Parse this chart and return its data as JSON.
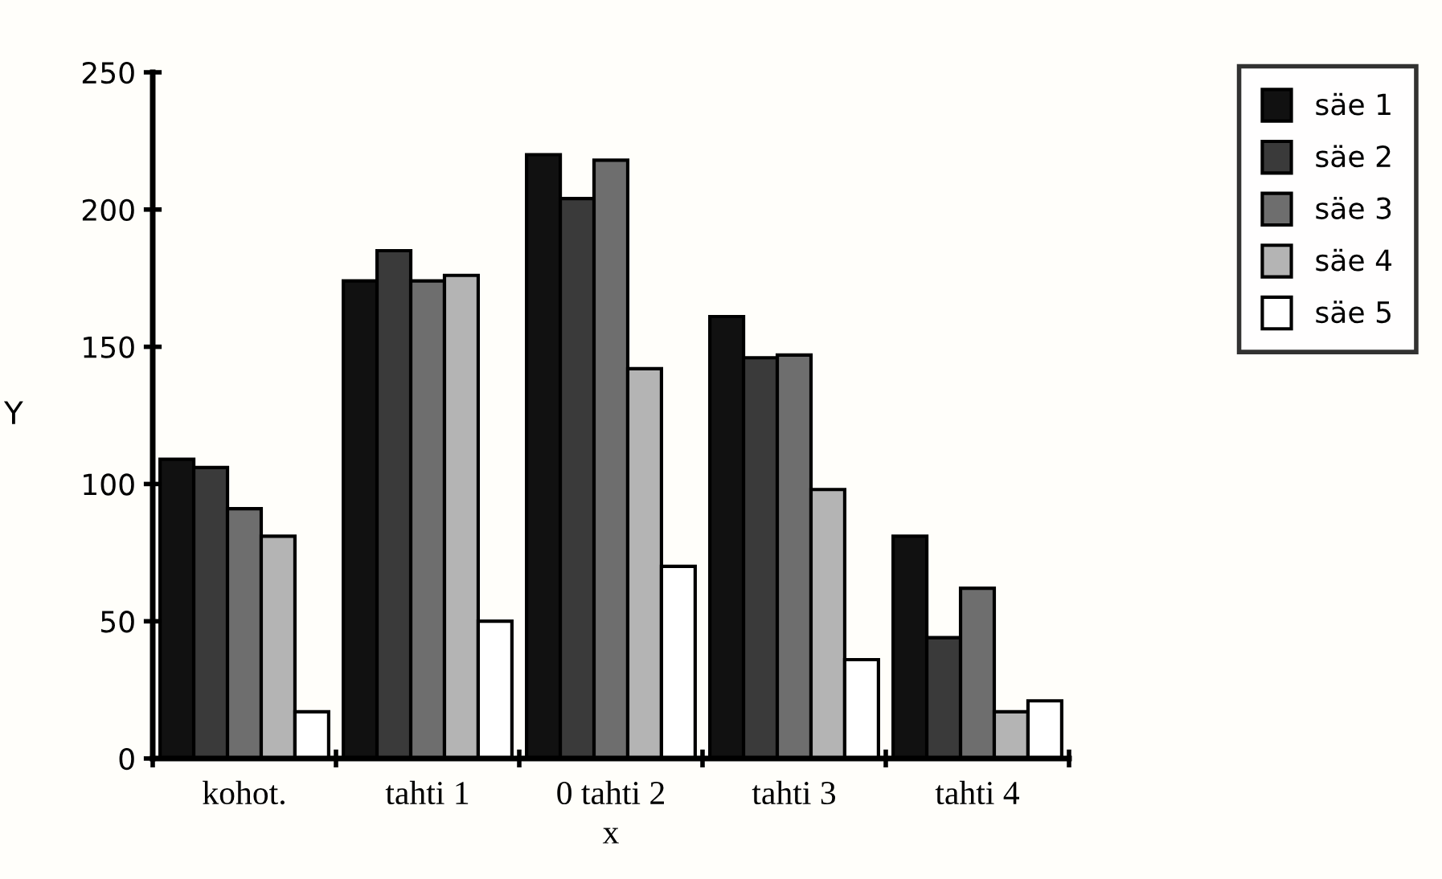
{
  "chart_data": {
    "type": "bar",
    "xlabel": "x",
    "ylabel": "Y",
    "categories": [
      "kohot.",
      "tahti 1",
      "0 tahti 2",
      "tahti 3",
      "tahti 4"
    ],
    "series": [
      {
        "name": "säe 1",
        "color": "#111111",
        "values": [
          109,
          174,
          220,
          161,
          81
        ]
      },
      {
        "name": "säe 2",
        "color": "#3a3a3a",
        "values": [
          106,
          185,
          204,
          146,
          44
        ]
      },
      {
        "name": "säe 3",
        "color": "#6e6e6e",
        "values": [
          91,
          174,
          218,
          147,
          62
        ]
      },
      {
        "name": "säe 4",
        "color": "#b4b4b4",
        "values": [
          81,
          176,
          142,
          98,
          17
        ]
      },
      {
        "name": "säe 5",
        "color": "#ffffff",
        "values": [
          17,
          50,
          70,
          36,
          21
        ]
      }
    ],
    "ylim": [
      0,
      250
    ],
    "yticks": [
      0,
      50,
      100,
      150,
      200,
      250
    ],
    "grid": false,
    "legend": "top right"
  }
}
